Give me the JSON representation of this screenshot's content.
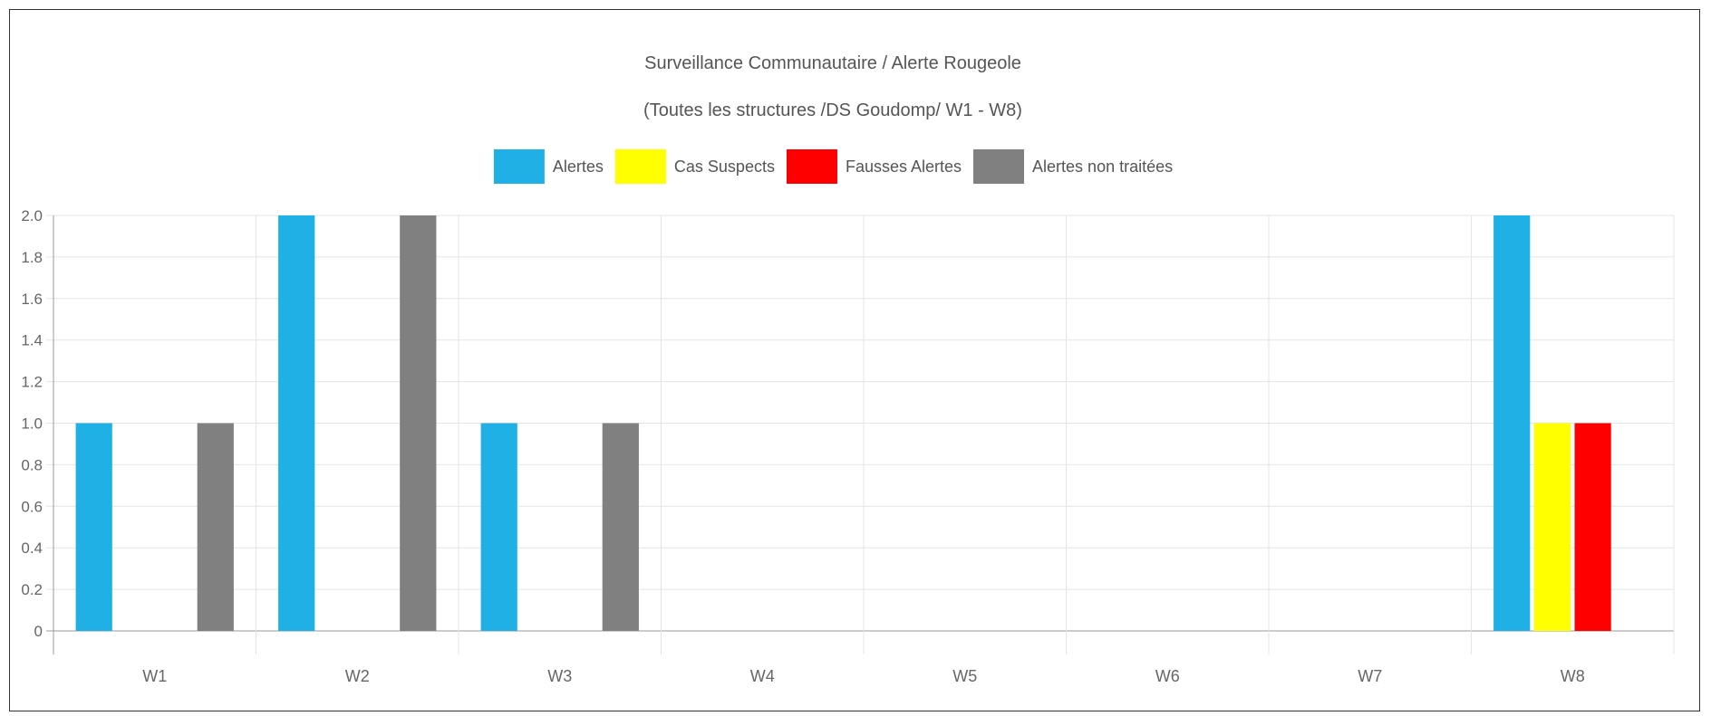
{
  "chart_data": {
    "type": "bar",
    "title": "Surveillance Communautaire / Alerte Rougeole",
    "subtitle": "(Toutes les structures /DS Goudomp/ W1 - W8)",
    "categories": [
      "W1",
      "W2",
      "W3",
      "W4",
      "W5",
      "W6",
      "W7",
      "W8"
    ],
    "series": [
      {
        "name": "Alertes",
        "color": "#1fb1e5",
        "values": [
          1,
          2,
          1,
          0,
          0,
          0,
          0,
          2
        ]
      },
      {
        "name": "Cas Suspects",
        "color": "#ffff00",
        "values": [
          0,
          0,
          0,
          0,
          0,
          0,
          0,
          1
        ]
      },
      {
        "name": "Fausses Alertes",
        "color": "#ff0000",
        "values": [
          0,
          0,
          0,
          0,
          0,
          0,
          0,
          1
        ]
      },
      {
        "name": "Alertes non traitées",
        "color": "#808080",
        "values": [
          1,
          2,
          1,
          0,
          0,
          0,
          0,
          0
        ]
      }
    ],
    "ylim": [
      0,
      2.0
    ],
    "yticks": [
      "0",
      "0.2",
      "0.4",
      "0.6",
      "0.8",
      "1.0",
      "1.2",
      "1.4",
      "1.6",
      "1.8",
      "2.0"
    ],
    "xlabel": "",
    "ylabel": "",
    "grid": true,
    "legend_position": "top-center"
  }
}
